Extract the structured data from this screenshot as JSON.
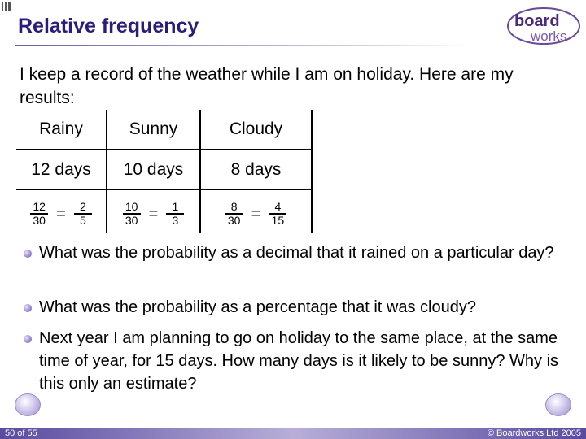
{
  "header": {
    "title": "Relative frequency",
    "logo": [
      "board",
      "works"
    ]
  },
  "intro": "I keep a record of the weather while I am on holiday. Here are my results:",
  "table": {
    "headers": [
      "Rainy",
      "Sunny",
      "Cloudy"
    ],
    "days": [
      "12 days",
      "10 days",
      "8 days"
    ],
    "fractions": [
      {
        "numerator": "12",
        "denominator": "30",
        "equals": "=",
        "simple_numerator": "2",
        "simple_denominator": "5"
      },
      {
        "numerator": "10",
        "denominator": "30",
        "equals": "=",
        "simple_numerator": "1",
        "simple_denominator": "3"
      },
      {
        "numerator": "8",
        "denominator": "30",
        "equals": "=",
        "simple_numerator": "4",
        "simple_denominator": "15"
      }
    ]
  },
  "questions": [
    "What was the probability as a decimal that it rained on a particular day?",
    "What was the probability as a percentage that it was cloudy?",
    "Next year I am planning to go on holiday to the same place, at the same time of year, for 15 days. How many days is it likely to be sunny? Why is this only an estimate?"
  ],
  "footer": {
    "page": "50 of 55",
    "copyright": "© Boardworks Ltd 2005"
  }
}
